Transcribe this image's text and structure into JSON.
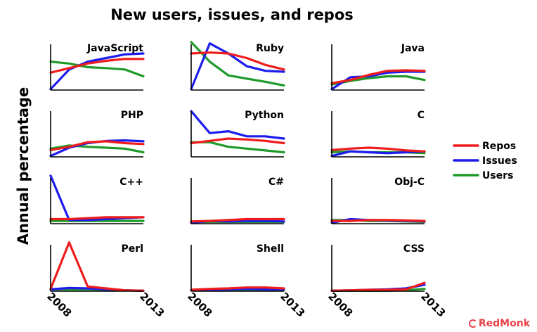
{
  "chart_data": {
    "type": "line",
    "title": "New users, issues, and repos",
    "ylabel": "Annual percentage",
    "xlabel": "",
    "x": [
      2008,
      2009,
      2010,
      2011,
      2012,
      2013
    ],
    "x_tick_labels": [
      "2008",
      "2013"
    ],
    "xlim": [
      2008,
      2013
    ],
    "ylim": [
      0,
      1
    ],
    "grid": false,
    "legend_position": "right",
    "legend": [
      {
        "name": "Repos",
        "color": "#ee1c1c"
      },
      {
        "name": "Issues",
        "color": "#1c1cee"
      },
      {
        "name": "Users",
        "color": "#1f9a2a"
      }
    ],
    "panels": [
      {
        "label": "JavaScript",
        "series": {
          "Repos": [
            0.38,
            0.48,
            0.58,
            0.64,
            0.68,
            0.68
          ],
          "Issues": [
            0.02,
            0.45,
            0.62,
            0.7,
            0.78,
            0.8
          ],
          "Users": [
            0.62,
            0.58,
            0.5,
            0.48,
            0.45,
            0.3
          ]
        }
      },
      {
        "label": "Ruby",
        "series": {
          "Repos": [
            0.8,
            0.82,
            0.8,
            0.7,
            0.55,
            0.45
          ],
          "Issues": [
            0.02,
            1.02,
            0.8,
            0.52,
            0.42,
            0.4
          ],
          "Users": [
            1.05,
            0.62,
            0.32,
            0.25,
            0.18,
            0.1
          ]
        }
      },
      {
        "label": "Java",
        "series": {
          "Repos": [
            0.15,
            0.22,
            0.33,
            0.42,
            0.43,
            0.42
          ],
          "Issues": [
            0.02,
            0.28,
            0.3,
            0.38,
            0.4,
            0.4
          ],
          "Users": [
            0.12,
            0.2,
            0.26,
            0.3,
            0.3,
            0.22
          ]
        }
      },
      {
        "label": "PHP",
        "series": {
          "Repos": [
            0.15,
            0.22,
            0.32,
            0.34,
            0.3,
            0.28
          ],
          "Issues": [
            0.02,
            0.2,
            0.3,
            0.35,
            0.36,
            0.34
          ],
          "Users": [
            0.18,
            0.25,
            0.22,
            0.2,
            0.18,
            0.1
          ]
        }
      },
      {
        "label": "Python",
        "series": {
          "Repos": [
            0.3,
            0.35,
            0.4,
            0.38,
            0.35,
            0.3
          ],
          "Issues": [
            1.0,
            0.52,
            0.56,
            0.45,
            0.45,
            0.4
          ],
          "Users": [
            0.32,
            0.32,
            0.22,
            0.18,
            0.14,
            0.1
          ]
        }
      },
      {
        "label": "C",
        "series": {
          "Repos": [
            0.15,
            0.18,
            0.2,
            0.18,
            0.14,
            0.12
          ],
          "Issues": [
            0.02,
            0.12,
            0.1,
            0.08,
            0.1,
            0.12
          ],
          "Users": [
            0.1,
            0.12,
            0.1,
            0.1,
            0.1,
            0.08
          ]
        }
      },
      {
        "label": "C++",
        "series": {
          "Repos": [
            0.1,
            0.1,
            0.12,
            0.14,
            0.14,
            0.14
          ],
          "Issues": [
            1.05,
            0.08,
            0.08,
            0.1,
            0.12,
            0.14
          ],
          "Users": [
            0.06,
            0.06,
            0.06,
            0.06,
            0.06,
            0.06
          ]
        }
      },
      {
        "label": "C#",
        "series": {
          "Repos": [
            0.05,
            0.06,
            0.08,
            0.1,
            0.1,
            0.1
          ],
          "Issues": [
            0.02,
            0.06,
            0.05,
            0.06,
            0.06,
            0.05
          ],
          "Users": [
            0.04,
            0.04,
            0.04,
            0.04,
            0.04,
            0.04
          ]
        }
      },
      {
        "label": "Obj-C",
        "series": {
          "Repos": [
            0.06,
            0.06,
            0.08,
            0.08,
            0.07,
            0.06
          ],
          "Issues": [
            0.02,
            0.1,
            0.08,
            0.07,
            0.06,
            0.05
          ],
          "Users": [
            0.08,
            0.08,
            0.06,
            0.06,
            0.05,
            0.04
          ]
        }
      },
      {
        "label": "Perl",
        "series": {
          "Repos": [
            0.05,
            1.05,
            0.1,
            0.06,
            0.02,
            0.01
          ],
          "Issues": [
            0.04,
            0.07,
            0.06,
            0.04,
            0.02,
            0.01
          ],
          "Users": [
            0.04,
            0.04,
            0.04,
            0.03,
            0.02,
            0.01
          ]
        }
      },
      {
        "label": "Shell",
        "series": {
          "Repos": [
            0.03,
            0.05,
            0.06,
            0.08,
            0.08,
            0.06
          ],
          "Issues": [
            0.02,
            0.03,
            0.04,
            0.05,
            0.04,
            0.04
          ],
          "Users": [
            0.02,
            0.02,
            0.02,
            0.02,
            0.02,
            0.02
          ]
        }
      },
      {
        "label": "CSS",
        "series": {
          "Repos": [
            0.01,
            0.02,
            0.03,
            0.03,
            0.04,
            0.18
          ],
          "Issues": [
            0.01,
            0.02,
            0.03,
            0.04,
            0.06,
            0.14
          ],
          "Users": [
            0.01,
            0.01,
            0.01,
            0.01,
            0.02,
            0.05
          ]
        }
      }
    ]
  },
  "brand": {
    "label": "RedMonk"
  }
}
